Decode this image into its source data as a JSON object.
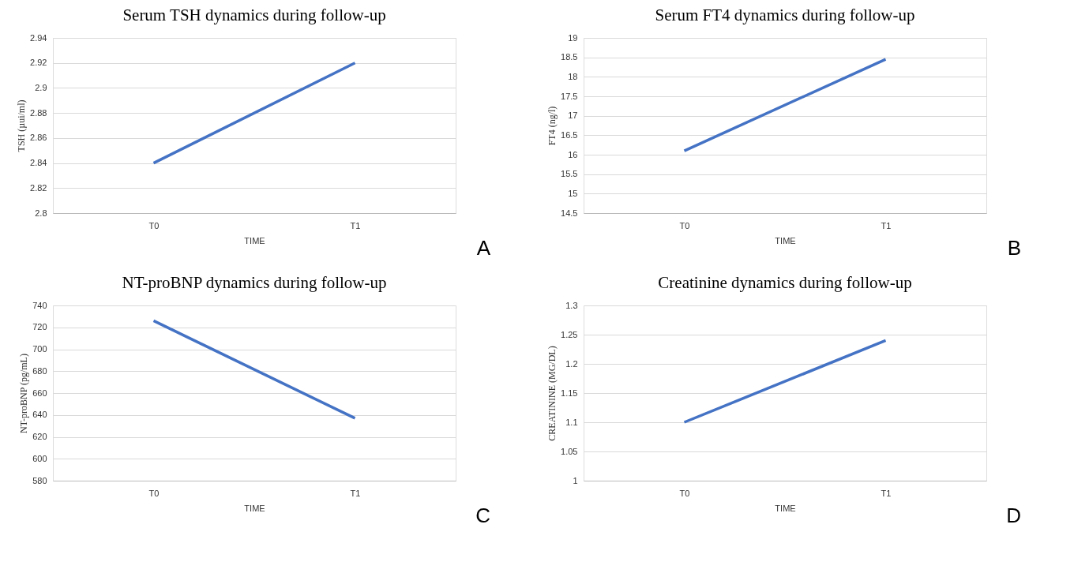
{
  "chart_data": [
    {
      "type": "line",
      "title": "Serum TSH dynamics during follow-up",
      "xlabel": "TIME",
      "ylabel": "TSH (µui/ml)",
      "categories": [
        "T0",
        "T1"
      ],
      "series": [
        {
          "color": "#4472c4",
          "values": [
            2.84,
            2.92
          ]
        }
      ],
      "ylim": [
        2.8,
        2.94
      ],
      "yticks": [
        {
          "value": 2.8,
          "label": "2.8"
        },
        2.82,
        2.84,
        2.86,
        2.88,
        {
          "value": 2.9,
          "label": "2.9"
        },
        2.92,
        2.94
      ],
      "grid": "y",
      "marker": "none",
      "line_style": "solid",
      "annotations": [
        "A"
      ]
    },
    {
      "type": "line",
      "title": "Serum FT4 dynamics during follow-up",
      "xlabel": "TIME",
      "ylabel": "FT4 (ng/l)",
      "categories": [
        "T0",
        "T1"
      ],
      "series": [
        {
          "color": "#4472c4",
          "values": [
            16.1,
            18.45
          ]
        }
      ],
      "ylim": [
        14.5,
        19
      ],
      "yticks": [
        14.5,
        15,
        15.5,
        16,
        16.5,
        17,
        17.5,
        18,
        18.5,
        19
      ],
      "grid": "y",
      "marker": "none",
      "line_style": "solid",
      "annotations": [
        "B"
      ]
    },
    {
      "type": "line",
      "title": "NT-proBNP dynamics during follow-up",
      "xlabel": "TIME",
      "ylabel": "NT-proBNP (pg/mL)",
      "categories": [
        "T0",
        "T1"
      ],
      "series": [
        {
          "color": "#4472c4",
          "values": [
            726,
            637
          ]
        }
      ],
      "ylim": [
        580,
        740
      ],
      "yticks": [
        580,
        600,
        620,
        640,
        660,
        680,
        700,
        720,
        740
      ],
      "grid": "y",
      "marker": "none",
      "line_style": "solid",
      "annotations": [
        "C"
      ]
    },
    {
      "type": "line",
      "title": "Creatinine dynamics during follow-up",
      "xlabel": "TIME",
      "ylabel": "CREATININE (MG/DL)",
      "categories": [
        "T0",
        "T1"
      ],
      "series": [
        {
          "color": "#4472c4",
          "values": [
            1.1,
            1.24
          ]
        }
      ],
      "ylim": [
        1,
        1.3
      ],
      "yticks": [
        1,
        1.05,
        1.1,
        1.15,
        1.2,
        1.25,
        1.3
      ],
      "grid": "y",
      "marker": "none",
      "line_style": "solid",
      "annotations": [
        "D"
      ]
    }
  ]
}
